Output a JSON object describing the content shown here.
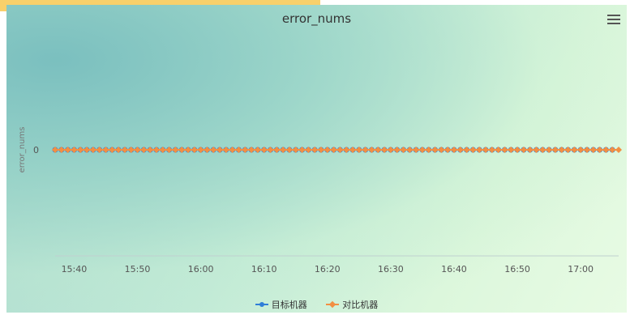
{
  "chart_data": {
    "type": "line",
    "title": "error_nums",
    "ylabel": "error_nums",
    "xlabel": "",
    "x_ticks": [
      "15:40",
      "15:50",
      "16:00",
      "16:10",
      "16:20",
      "16:30",
      "16:40",
      "16:50",
      "17:00"
    ],
    "x_range": [
      "15:37",
      "17:06"
    ],
    "y_ticks": [
      "0"
    ],
    "grid": false,
    "legend_position": "bottom",
    "series": [
      {
        "name": "目标机器",
        "color": "#2f7ed8",
        "marker": "circle",
        "x_start": "15:37",
        "x_interval_minutes": 1,
        "count": 89,
        "value": 0
      },
      {
        "name": "对比机器",
        "color": "#f28f43",
        "marker": "diamond",
        "x_start": "15:37",
        "x_interval_minutes": 1,
        "count": 90,
        "value": 0
      }
    ]
  },
  "toolbar": {
    "menu_icon": "hamburger-menu-icon"
  },
  "colors": {
    "accent_strip": "#f8d06b"
  }
}
